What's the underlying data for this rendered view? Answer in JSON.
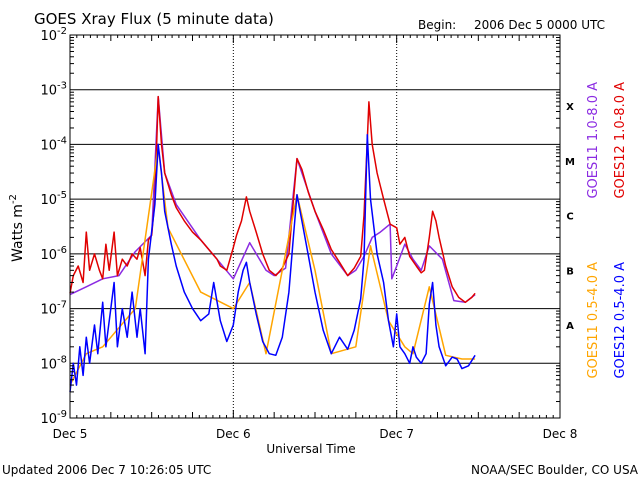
{
  "header": {
    "title": "GOES Xray Flux (5 minute data)",
    "begin_label": "Begin:",
    "begin_value": "2006 Dec 5 0000 UTC"
  },
  "footer": {
    "updated": "Updated 2006 Dec  7 10:26:05 UTC",
    "credit": "NOAA/SEC Boulder, CO USA"
  },
  "colors": {
    "goes11_long": "#8b2be2",
    "goes12_long": "#e00000",
    "goes11_short": "#ffa500",
    "goes12_short": "#0000ff",
    "gridline": "#000000"
  },
  "chart_data": {
    "type": "line",
    "title": "GOES Xray Flux (5 minute data)",
    "xlabel": "Universal Time",
    "ylabel_base": "Watts m",
    "ylabel_exp": "-2",
    "yscale": "log",
    "ylim": [
      1e-09,
      0.01
    ],
    "xlim": [
      0,
      3
    ],
    "x_units": "days since 2006 Dec 5 0000 UTC",
    "x_ticks": [
      {
        "x": 0,
        "label": "Dec 5"
      },
      {
        "x": 1,
        "label": "Dec 6"
      },
      {
        "x": 2,
        "label": "Dec 7"
      },
      {
        "x": 3,
        "label": "Dec 8"
      }
    ],
    "y_ticks": [
      {
        "base": "10",
        "exp": "-9",
        "value": 1e-09
      },
      {
        "base": "10",
        "exp": "-8",
        "value": 1e-08
      },
      {
        "base": "10",
        "exp": "-7",
        "value": 1e-07
      },
      {
        "base": "10",
        "exp": "-6",
        "value": 1e-06
      },
      {
        "base": "10",
        "exp": "-5",
        "value": 1e-05
      },
      {
        "base": "10",
        "exp": "-4",
        "value": 0.0001
      },
      {
        "base": "10",
        "exp": "-3",
        "value": 0.001
      },
      {
        "base": "10",
        "exp": "-2",
        "value": 0.01
      }
    ],
    "flare_classes": [
      {
        "label": "X",
        "value": 0.0005
      },
      {
        "label": "M",
        "value": 5e-05
      },
      {
        "label": "C",
        "value": 5e-06
      },
      {
        "label": "B",
        "value": 5e-07
      },
      {
        "label": "A",
        "value": 5e-08
      }
    ],
    "legend": [
      {
        "name": "GOES11 1.0-8.0 A",
        "color": "#8b2be2"
      },
      {
        "name": "GOES12 1.0-8.0 A",
        "color": "#e00000"
      },
      {
        "name": "GOES11 0.5-4.0 A",
        "color": "#ffa500"
      },
      {
        "name": "GOES12 0.5-4.0 A",
        "color": "#0000ff"
      }
    ],
    "series": [
      {
        "name": "GOES11 1.0-8.0 A",
        "color": "#8b2be2",
        "points": [
          [
            0,
            1.8e-07
          ],
          [
            0.1,
            2.5e-07
          ],
          [
            0.2,
            3.5e-07
          ],
          [
            0.3,
            4e-07
          ],
          [
            0.4,
            1.1e-06
          ],
          [
            0.5,
            2.2e-06
          ],
          [
            0.54,
            0.00075
          ],
          [
            0.58,
            3e-05
          ],
          [
            0.65,
            8e-06
          ],
          [
            0.8,
            1.8e-06
          ],
          [
            0.9,
            8e-07
          ],
          [
            1.0,
            3.5e-07
          ],
          [
            1.1,
            1.6e-06
          ],
          [
            1.2,
            5e-07
          ],
          [
            1.25,
            4e-07
          ],
          [
            1.32,
            5.5e-07
          ],
          [
            1.39,
            5.5e-05
          ],
          [
            1.5,
            6e-06
          ],
          [
            1.6,
            1e-06
          ],
          [
            1.7,
            4e-07
          ],
          [
            1.75,
            5e-07
          ],
          [
            1.8,
            9e-07
          ],
          [
            1.85,
            2e-06
          ],
          [
            1.9,
            2.5e-06
          ],
          [
            1.96,
            3.5e-06
          ],
          [
            1.97,
            3.5e-07
          ],
          [
            2.0,
            6e-07
          ],
          [
            2.05,
            1.5e-06
          ],
          [
            2.1,
            8e-07
          ],
          [
            2.15,
            5e-07
          ],
          [
            2.2,
            1.4e-06
          ],
          [
            2.28,
            8e-07
          ],
          [
            2.35,
            1.4e-07
          ],
          [
            2.42,
            1.3e-07
          ],
          [
            2.48,
            1.8e-07
          ]
        ]
      },
      {
        "name": "GOES12 1.0-8.0 A",
        "color": "#e00000",
        "points": [
          [
            0,
            1.9e-07
          ],
          [
            0.02,
            4e-07
          ],
          [
            0.05,
            6e-07
          ],
          [
            0.08,
            3e-07
          ],
          [
            0.1,
            2.5e-06
          ],
          [
            0.12,
            5e-07
          ],
          [
            0.15,
            1e-06
          ],
          [
            0.18,
            5e-07
          ],
          [
            0.2,
            3.5e-07
          ],
          [
            0.22,
            1.5e-06
          ],
          [
            0.24,
            5e-07
          ],
          [
            0.27,
            2.5e-06
          ],
          [
            0.29,
            4e-07
          ],
          [
            0.32,
            8e-07
          ],
          [
            0.35,
            6e-07
          ],
          [
            0.38,
            1e-06
          ],
          [
            0.41,
            8e-07
          ],
          [
            0.43,
            1.3e-06
          ],
          [
            0.46,
            4e-07
          ],
          [
            0.48,
            1.8e-06
          ],
          [
            0.5,
            2.2e-06
          ],
          [
            0.52,
            1e-05
          ],
          [
            0.54,
            0.00075
          ],
          [
            0.56,
            0.0001
          ],
          [
            0.58,
            3e-05
          ],
          [
            0.62,
            1.2e-05
          ],
          [
            0.65,
            7e-06
          ],
          [
            0.7,
            4e-06
          ],
          [
            0.75,
            2.5e-06
          ],
          [
            0.8,
            1.8e-06
          ],
          [
            0.85,
            1.2e-06
          ],
          [
            0.9,
            8e-07
          ],
          [
            0.92,
            6e-07
          ],
          [
            0.96,
            5e-07
          ],
          [
            1.0,
            1.3e-06
          ],
          [
            1.02,
            2.2e-06
          ],
          [
            1.05,
            4e-06
          ],
          [
            1.08,
            1.1e-05
          ],
          [
            1.1,
            6e-06
          ],
          [
            1.14,
            2.5e-06
          ],
          [
            1.18,
            1e-06
          ],
          [
            1.22,
            5e-07
          ],
          [
            1.26,
            4e-07
          ],
          [
            1.3,
            5.5e-07
          ],
          [
            1.34,
            1e-06
          ],
          [
            1.36,
            5e-06
          ],
          [
            1.39,
            5.5e-05
          ],
          [
            1.42,
            3.5e-05
          ],
          [
            1.46,
            1.3e-05
          ],
          [
            1.5,
            6e-06
          ],
          [
            1.55,
            2.8e-06
          ],
          [
            1.6,
            1.2e-06
          ],
          [
            1.65,
            7e-07
          ],
          [
            1.7,
            4e-07
          ],
          [
            1.74,
            5.5e-07
          ],
          [
            1.78,
            9e-07
          ],
          [
            1.8,
            5e-06
          ],
          [
            1.82,
            0.00012
          ],
          [
            1.83,
            0.0006
          ],
          [
            1.85,
            0.0001
          ],
          [
            1.88,
            3e-05
          ],
          [
            1.92,
            1e-05
          ],
          [
            1.96,
            3.5e-06
          ],
          [
            2.0,
            3e-06
          ],
          [
            2.02,
            1.5e-06
          ],
          [
            2.05,
            2e-06
          ],
          [
            2.08,
            9e-07
          ],
          [
            2.12,
            6e-07
          ],
          [
            2.15,
            4.5e-07
          ],
          [
            2.17,
            5e-07
          ],
          [
            2.2,
            2e-06
          ],
          [
            2.22,
            6e-06
          ],
          [
            2.24,
            4e-06
          ],
          [
            2.26,
            2e-06
          ],
          [
            2.3,
            6e-07
          ],
          [
            2.34,
            2.5e-07
          ],
          [
            2.38,
            1.6e-07
          ],
          [
            2.42,
            1.3e-07
          ],
          [
            2.46,
            1.6e-07
          ],
          [
            2.48,
            1.9e-07
          ]
        ]
      },
      {
        "name": "GOES11 0.5-4.0 A",
        "color": "#ffa500",
        "points": [
          [
            0,
            4e-09
          ],
          [
            0.1,
            1.5e-08
          ],
          [
            0.2,
            2e-08
          ],
          [
            0.4,
            1e-07
          ],
          [
            0.54,
            9e-05
          ],
          [
            0.6,
            3e-06
          ],
          [
            0.8,
            2e-07
          ],
          [
            1.0,
            1e-07
          ],
          [
            1.1,
            3e-07
          ],
          [
            1.2,
            1.5e-08
          ],
          [
            1.39,
            1.2e-05
          ],
          [
            1.5,
            5e-07
          ],
          [
            1.6,
            1.5e-08
          ],
          [
            1.75,
            2e-08
          ],
          [
            1.84,
            1.4e-06
          ],
          [
            1.95,
            6e-08
          ],
          [
            2.05,
            2e-08
          ],
          [
            2.1,
            1.5e-08
          ],
          [
            2.2,
            2.5e-07
          ],
          [
            2.3,
            1.4e-08
          ],
          [
            2.4,
            1.2e-08
          ],
          [
            2.48,
            1.2e-08
          ]
        ]
      },
      {
        "name": "GOES12 0.5-4.0 A",
        "color": "#0000ff",
        "points": [
          [
            0,
            3e-09
          ],
          [
            0.02,
            1e-08
          ],
          [
            0.04,
            4e-09
          ],
          [
            0.06,
            2e-08
          ],
          [
            0.08,
            6e-09
          ],
          [
            0.1,
            3e-08
          ],
          [
            0.12,
            1e-08
          ],
          [
            0.15,
            5e-08
          ],
          [
            0.17,
            1.5e-08
          ],
          [
            0.2,
            1.3e-07
          ],
          [
            0.22,
            2e-08
          ],
          [
            0.25,
            1e-07
          ],
          [
            0.27,
            3e-07
          ],
          [
            0.29,
            2e-08
          ],
          [
            0.32,
            1e-07
          ],
          [
            0.35,
            3e-08
          ],
          [
            0.38,
            2e-07
          ],
          [
            0.41,
            3e-08
          ],
          [
            0.43,
            1e-07
          ],
          [
            0.46,
            1.5e-08
          ],
          [
            0.48,
            8e-07
          ],
          [
            0.52,
            8e-06
          ],
          [
            0.54,
            0.0001
          ],
          [
            0.56,
            3e-05
          ],
          [
            0.58,
            6e-06
          ],
          [
            0.62,
            1.5e-06
          ],
          [
            0.65,
            6e-07
          ],
          [
            0.7,
            2e-07
          ],
          [
            0.75,
            1e-07
          ],
          [
            0.8,
            6e-08
          ],
          [
            0.85,
            8e-08
          ],
          [
            0.88,
            3e-07
          ],
          [
            0.92,
            6e-08
          ],
          [
            0.96,
            2.5e-08
          ],
          [
            1.0,
            5e-08
          ],
          [
            1.03,
            2e-07
          ],
          [
            1.06,
            5e-07
          ],
          [
            1.08,
            7e-07
          ],
          [
            1.1,
            3e-07
          ],
          [
            1.14,
            8e-08
          ],
          [
            1.18,
            2.5e-08
          ],
          [
            1.22,
            1.5e-08
          ],
          [
            1.26,
            1.4e-08
          ],
          [
            1.3,
            3e-08
          ],
          [
            1.34,
            2e-07
          ],
          [
            1.37,
            2.5e-06
          ],
          [
            1.39,
            1.2e-05
          ],
          [
            1.42,
            4e-06
          ],
          [
            1.46,
            9e-07
          ],
          [
            1.5,
            2e-07
          ],
          [
            1.55,
            4e-08
          ],
          [
            1.6,
            1.5e-08
          ],
          [
            1.65,
            3e-08
          ],
          [
            1.7,
            1.8e-08
          ],
          [
            1.74,
            4e-08
          ],
          [
            1.78,
            1.5e-07
          ],
          [
            1.8,
            8e-07
          ],
          [
            1.82,
            0.00015
          ],
          [
            1.84,
            1e-05
          ],
          [
            1.88,
            1e-06
          ],
          [
            1.92,
            3e-07
          ],
          [
            1.95,
            6e-08
          ],
          [
            1.98,
            2e-08
          ],
          [
            2.0,
            8e-08
          ],
          [
            2.02,
            2e-08
          ],
          [
            2.05,
            1.5e-08
          ],
          [
            2.08,
            1e-08
          ],
          [
            2.1,
            2e-08
          ],
          [
            2.12,
            1.3e-08
          ],
          [
            2.15,
            1e-08
          ],
          [
            2.18,
            1.5e-08
          ],
          [
            2.2,
            1.2e-07
          ],
          [
            2.22,
            3e-07
          ],
          [
            2.24,
            5e-08
          ],
          [
            2.26,
            2e-08
          ],
          [
            2.3,
            9e-09
          ],
          [
            2.34,
            1.3e-08
          ],
          [
            2.37,
            1.2e-08
          ],
          [
            2.4,
            8e-09
          ],
          [
            2.44,
            9e-09
          ],
          [
            2.48,
            1.4e-08
          ]
        ]
      }
    ]
  }
}
